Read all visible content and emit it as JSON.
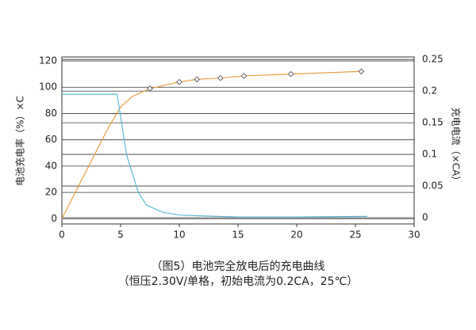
{
  "chart_data": {
    "type": "line",
    "title": "（图5）电池完全放电后的充电曲线",
    "subtitle": "（恒压2.30V/单格，初始电流为0.2CA，25℃）",
    "y_label": "电池充电率（%）×C",
    "y2_label": "充电电流（×CA）",
    "xlim": [
      0,
      30
    ],
    "xticks": [
      0,
      5,
      10,
      15,
      20,
      25,
      30
    ],
    "ylim": [
      -4,
      123
    ],
    "yticks": [
      0,
      20,
      40,
      60,
      80,
      100,
      120
    ],
    "y2lim": [
      -0.01,
      0.254
    ],
    "y2ticks": [
      0,
      0.05,
      0.1,
      0.15,
      0.2,
      0.25
    ],
    "grid": true,
    "series": [
      {
        "color": "#e8a040",
        "x": [
          0,
          2,
          4,
          5,
          6,
          7.5,
          10,
          11.5,
          13.5,
          15.5,
          19.5,
          25.5
        ],
        "values": [
          0,
          35,
          70,
          85,
          93,
          99,
          104,
          106,
          107,
          108.6,
          110,
          112
        ]
      },
      {
        "marker": "diamond",
        "color": "#555555",
        "x": [
          7.5,
          10,
          11.5,
          13.5,
          15.5,
          19.5,
          25.5
        ],
        "values": [
          99,
          104,
          106,
          107,
          108.6,
          110,
          112
        ]
      },
      {
        "axis": "y2",
        "color": "#5bbcd6",
        "x": [
          0,
          4.7,
          5,
          5.5,
          6.5,
          7.2,
          8.5,
          10,
          15,
          20,
          26
        ],
        "values": [
          0.195,
          0.195,
          0.16,
          0.1,
          0.04,
          0.02,
          0.009,
          0.004,
          0.001,
          0.001,
          0.002
        ]
      }
    ]
  }
}
